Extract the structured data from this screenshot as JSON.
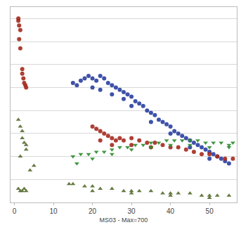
{
  "chart_data": {
    "type": "scatter",
    "xlabel": "MS03 - Max=700",
    "xlim": [
      -1,
      57
    ],
    "xticks": [
      0,
      10,
      20,
      30,
      40,
      50
    ],
    "ylim": [
      0,
      85
    ],
    "yticks": [
      0,
      10,
      20,
      30,
      40,
      50,
      60,
      70,
      80
    ],
    "grid": true,
    "tick_labels": "x",
    "series": [
      {
        "color": "#2a3fa0",
        "marker": "circle",
        "x": [
          15,
          16,
          17,
          18,
          19,
          20,
          21,
          22,
          23,
          24,
          25,
          26,
          27,
          28,
          29,
          30,
          31,
          32,
          33,
          34,
          35,
          36,
          37,
          38,
          39,
          40,
          41,
          42,
          43,
          44,
          45,
          46,
          47,
          48,
          49,
          50,
          51,
          52,
          53,
          54,
          55,
          20,
          22,
          25,
          28,
          30,
          35,
          40,
          45,
          50
        ],
        "values": [
          52,
          51,
          53,
          54,
          55,
          54,
          53,
          55,
          54,
          52,
          51,
          50,
          49,
          48,
          47,
          46,
          44,
          43,
          42,
          40,
          39,
          38,
          36,
          35,
          34,
          33,
          31,
          30,
          29,
          28,
          27,
          26,
          25,
          24,
          23,
          22,
          21,
          20,
          19,
          18,
          17,
          50,
          49,
          47,
          45,
          42,
          35,
          30,
          24,
          19
        ]
      },
      {
        "color": "#a52a1e",
        "marker": "circle",
        "x": [
          1,
          1,
          1.2,
          1.5,
          1.2,
          1.5,
          2,
          2,
          2.3,
          2.5,
          2.8,
          3,
          20,
          21,
          22,
          23,
          24,
          25,
          26,
          27,
          28,
          30,
          32,
          34,
          36,
          38,
          40,
          42,
          44,
          46,
          48,
          50,
          52,
          54,
          56,
          22,
          25,
          30,
          35
        ],
        "values": [
          80,
          79,
          77,
          75,
          71,
          67,
          58,
          56,
          54,
          52,
          51,
          50,
          33,
          32,
          31,
          30,
          29,
          28,
          27,
          28,
          27,
          28,
          27,
          26,
          26,
          25,
          24,
          24,
          23,
          22,
          21,
          21,
          20,
          19,
          19,
          27,
          25,
          25,
          24
        ]
      },
      {
        "color": "#2e8b2e",
        "marker": "triangle-down",
        "x": [
          15,
          17,
          19,
          21,
          23,
          25,
          27,
          29,
          31,
          33,
          35,
          37,
          39,
          41,
          43,
          45,
          47,
          49,
          51,
          53,
          55,
          56,
          16,
          20,
          25,
          30,
          35,
          40,
          45,
          50,
          55
        ],
        "values": [
          20,
          21,
          21,
          22,
          22,
          23,
          24,
          24,
          25,
          25,
          26,
          26,
          27,
          27,
          27,
          27,
          27,
          26,
          26,
          26,
          25,
          26,
          17,
          19,
          21,
          23,
          24,
          25,
          25,
          24,
          24
        ]
      },
      {
        "color": "#556b2f",
        "marker": "triangle-up",
        "x": [
          1,
          1.5,
          2,
          2,
          2.5,
          3,
          3,
          1.5,
          5,
          4,
          14,
          1,
          1.5,
          2,
          2.5,
          3,
          15,
          18,
          20,
          22,
          25,
          28,
          30,
          32,
          35,
          38,
          40,
          42,
          45,
          48,
          50,
          52,
          55,
          20,
          30,
          40,
          50
        ],
        "values": [
          36,
          33,
          31,
          28,
          26,
          25,
          23,
          20,
          16,
          14,
          8,
          6,
          5,
          5,
          6,
          5,
          8,
          7,
          7,
          6,
          6,
          5,
          5,
          5,
          5,
          4,
          4,
          4,
          4,
          3,
          3,
          3,
          3,
          5,
          4,
          3,
          2
        ]
      }
    ]
  }
}
